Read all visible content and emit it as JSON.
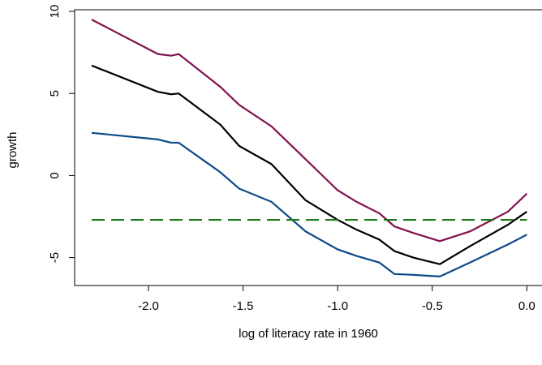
{
  "chart_data": {
    "type": "line",
    "x_label": "log of literacy rate in 1960",
    "y_label": "growth",
    "xlim": [
      -2.39,
      0.08
    ],
    "ylim": [
      -6.7,
      10.1
    ],
    "xticks": [
      {
        "value": -2,
        "label": "-2.0"
      },
      {
        "value": -1.5,
        "label": "-1.5"
      },
      {
        "value": -1,
        "label": "-1.0"
      },
      {
        "value": -0.5,
        "label": "-0.5"
      },
      {
        "value": 0,
        "label": "0.0"
      }
    ],
    "yticks": [
      -5,
      0,
      5,
      10
    ],
    "x": [
      -2.3,
      -1.95,
      -1.88,
      -1.84,
      -1.62,
      -1.52,
      -1.35,
      -1.17,
      -1.0,
      -0.9,
      -0.78,
      -0.7,
      -0.6,
      -0.46,
      -0.3,
      -0.1,
      0.0
    ],
    "series": [
      {
        "color": "#80124f",
        "values": [
          9.5,
          7.4,
          7.3,
          7.4,
          5.4,
          4.3,
          3.0,
          1.0,
          -0.9,
          -1.6,
          -2.3,
          -3.1,
          -3.5,
          -4.0,
          -3.4,
          -2.2,
          -1.1
        ]
      },
      {
        "color": "#000000",
        "values": [
          6.7,
          5.1,
          4.95,
          5.0,
          3.1,
          1.8,
          0.7,
          -1.5,
          -2.7,
          -3.3,
          -3.9,
          -4.6,
          -5.0,
          -5.4,
          -4.3,
          -3.0,
          -2.2
        ]
      },
      {
        "color": "#0d4a8a",
        "values": [
          2.6,
          2.2,
          2.0,
          2.0,
          0.2,
          -0.8,
          -1.6,
          -3.4,
          -4.5,
          -4.9,
          -5.3,
          -6.0,
          -6.05,
          -6.15,
          -5.3,
          -4.2,
          -3.6
        ]
      },
      {
        "color": "#1a7a1a",
        "dashed": true,
        "x": [
          -2.3,
          0.0
        ],
        "values": [
          -2.7,
          -2.7
        ]
      }
    ]
  }
}
